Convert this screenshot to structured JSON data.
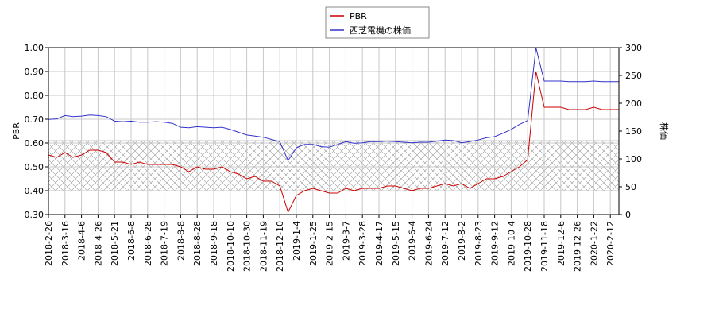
{
  "chart_data": {
    "type": "line",
    "categories": [
      "2018-2-26",
      null,
      "2018-3-16",
      null,
      "2018-4-6",
      null,
      "2018-4-26",
      null,
      "2018-5-21",
      null,
      "2018-6-8",
      null,
      "2018-6-28",
      null,
      "2018-7-19",
      null,
      "2018-8-8",
      null,
      "2018-8-28",
      null,
      "2018-9-18",
      null,
      "2018-10-10",
      null,
      "2018-10-30",
      null,
      "2018-11-19",
      null,
      "2018-12-10",
      null,
      "2019-1-4",
      null,
      "2019-1-25",
      null,
      "2019-2-15",
      null,
      "2019-3-7",
      null,
      "2019-3-28",
      null,
      "2019-4-17",
      null,
      "2019-5-15",
      null,
      "2019-6-4",
      null,
      "2019-6-24",
      null,
      "2019-7-12",
      null,
      "2019-8-2",
      null,
      "2019-8-23",
      null,
      "2019-9-12",
      null,
      "2019-10-4",
      null,
      "2019-10-28",
      null,
      "2019-11-18",
      null,
      "2019-12-6",
      null,
      "2019-12-26",
      null,
      "2020-1-22",
      null,
      "2020-2-12",
      null
    ],
    "series": [
      {
        "name": "PBR",
        "color": "#cc0000",
        "axis": "y",
        "values": [
          0.55,
          0.54,
          0.56,
          0.54,
          0.55,
          0.57,
          0.57,
          0.56,
          0.52,
          0.52,
          0.51,
          0.52,
          0.51,
          0.51,
          0.51,
          0.51,
          0.5,
          0.48,
          0.5,
          0.49,
          0.49,
          0.5,
          0.48,
          0.47,
          0.45,
          0.46,
          0.44,
          0.44,
          0.42,
          0.31,
          0.38,
          0.4,
          0.41,
          0.4,
          0.39,
          0.39,
          0.41,
          0.4,
          0.41,
          0.41,
          0.41,
          0.42,
          0.42,
          0.41,
          0.4,
          0.41,
          0.41,
          0.42,
          0.43,
          0.42,
          0.43,
          0.41,
          0.43,
          0.45,
          0.45,
          0.46,
          0.48,
          0.5,
          0.53,
          0.9,
          0.75,
          0.75,
          0.75,
          0.74,
          0.74,
          0.74,
          0.75,
          0.74,
          0.74,
          0.74
        ]
      },
      {
        "name": "西芝電機の株価",
        "color": "#3333cc",
        "axis": "y2",
        "values": [
          171,
          172,
          178,
          176,
          177,
          179,
          178,
          176,
          168,
          167,
          168,
          166,
          166,
          167,
          166,
          164,
          157,
          156,
          158,
          157,
          156,
          157,
          153,
          148,
          143,
          141,
          139,
          135,
          131,
          97,
          120,
          126,
          126,
          122,
          121,
          126,
          131,
          128,
          129,
          131,
          131,
          132,
          131,
          130,
          129,
          130,
          130,
          132,
          134,
          133,
          129,
          131,
          134,
          138,
          140,
          146,
          153,
          162,
          169,
          300,
          240,
          240,
          240,
          239,
          239,
          239,
          240,
          239,
          239,
          239
        ]
      }
    ],
    "ylabel": "PBR",
    "y2label": "株価",
    "ylim": [
      0.3,
      1.0
    ],
    "yticks": [
      {
        "value": 0.3,
        "label": "0.30"
      },
      {
        "value": 0.4,
        "label": "0.40"
      },
      {
        "value": 0.5,
        "label": "0.50"
      },
      {
        "value": 0.6,
        "label": "0.60"
      },
      {
        "value": 0.7,
        "label": "0.70"
      },
      {
        "value": 0.8,
        "label": "0.80"
      },
      {
        "value": 0.9,
        "label": "0.90"
      },
      {
        "value": 1.0,
        "label": "1.00"
      }
    ],
    "y2lim": [
      0,
      300
    ],
    "y2ticks": [
      0,
      50,
      100,
      150,
      200,
      250,
      300
    ],
    "shaded_range": [
      0.4,
      0.61
    ],
    "grid": true
  }
}
